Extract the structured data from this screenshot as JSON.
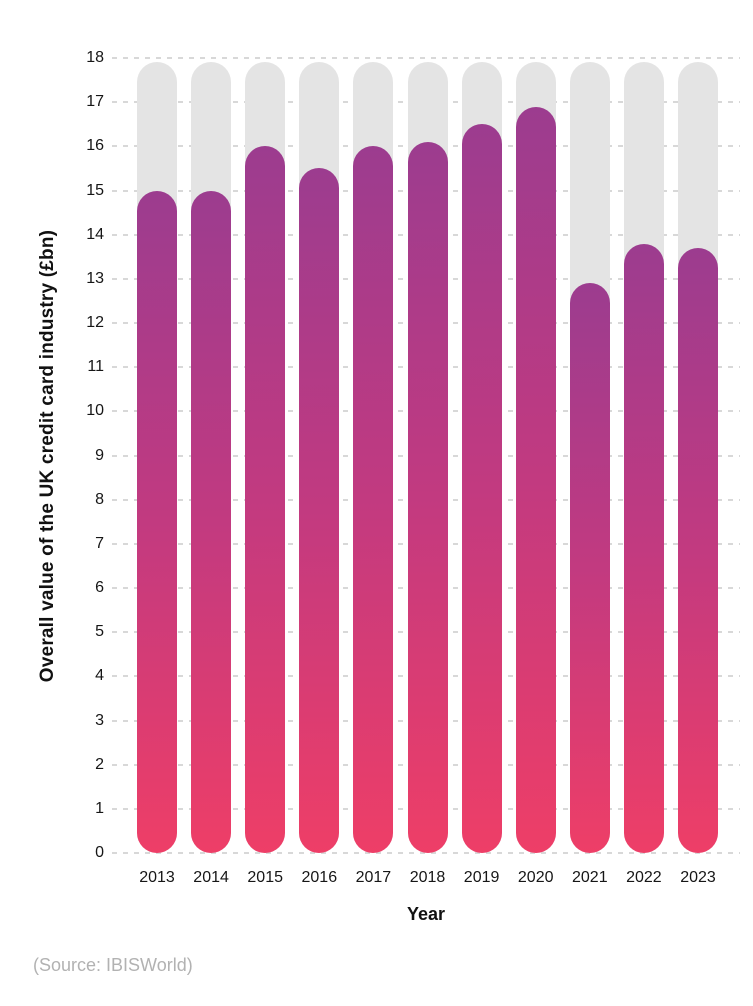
{
  "figure": {
    "x_axis_title": "Year",
    "y_axis_title": "Overall value of the UK credit card industry (£bn)",
    "source_note": "(Source: IBISWorld)"
  },
  "chart_data": {
    "type": "bar",
    "title": "",
    "categories": [
      "2013",
      "2014",
      "2015",
      "2016",
      "2017",
      "2018",
      "2019",
      "2020",
      "2021",
      "2022",
      "2023"
    ],
    "values": [
      15.0,
      15.0,
      16.0,
      15.5,
      16.0,
      16.1,
      16.5,
      16.9,
      12.9,
      13.8,
      13.7
    ],
    "xlabel": "Year",
    "ylabel": "Overall value of the UK credit card industry (£bn)",
    "ylim": [
      0,
      18
    ],
    "yticks": [
      0,
      1,
      2,
      3,
      4,
      5,
      6,
      7,
      8,
      9,
      10,
      11,
      12,
      13,
      14,
      15,
      16,
      17,
      18
    ],
    "grid": "horizontal-dashed",
    "legend": "none",
    "background_track_top": 17.9,
    "bar_style": "rounded-pill with gray full-height background track",
    "source": "(Source: IBISWorld)",
    "colors": {
      "bar_gradient_top": "#9c3c8f",
      "bar_gradient_mid": "#c23a80",
      "bar_gradient_bottom": "#ee3e67",
      "track": "#e4e4e4",
      "gridline": "#d8d8d8",
      "text": "#161616",
      "source_text": "#b2b2b2",
      "background": "#ffffff"
    }
  }
}
